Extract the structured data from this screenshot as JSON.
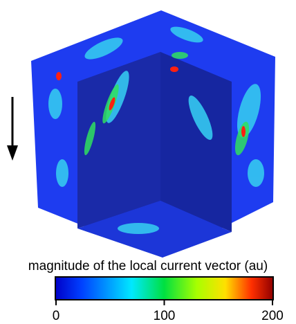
{
  "colorbar": {
    "label": "magnitude of the local current vector (au)",
    "lim": [
      0,
      200
    ],
    "ticks": [
      0,
      100,
      200
    ]
  }
}
